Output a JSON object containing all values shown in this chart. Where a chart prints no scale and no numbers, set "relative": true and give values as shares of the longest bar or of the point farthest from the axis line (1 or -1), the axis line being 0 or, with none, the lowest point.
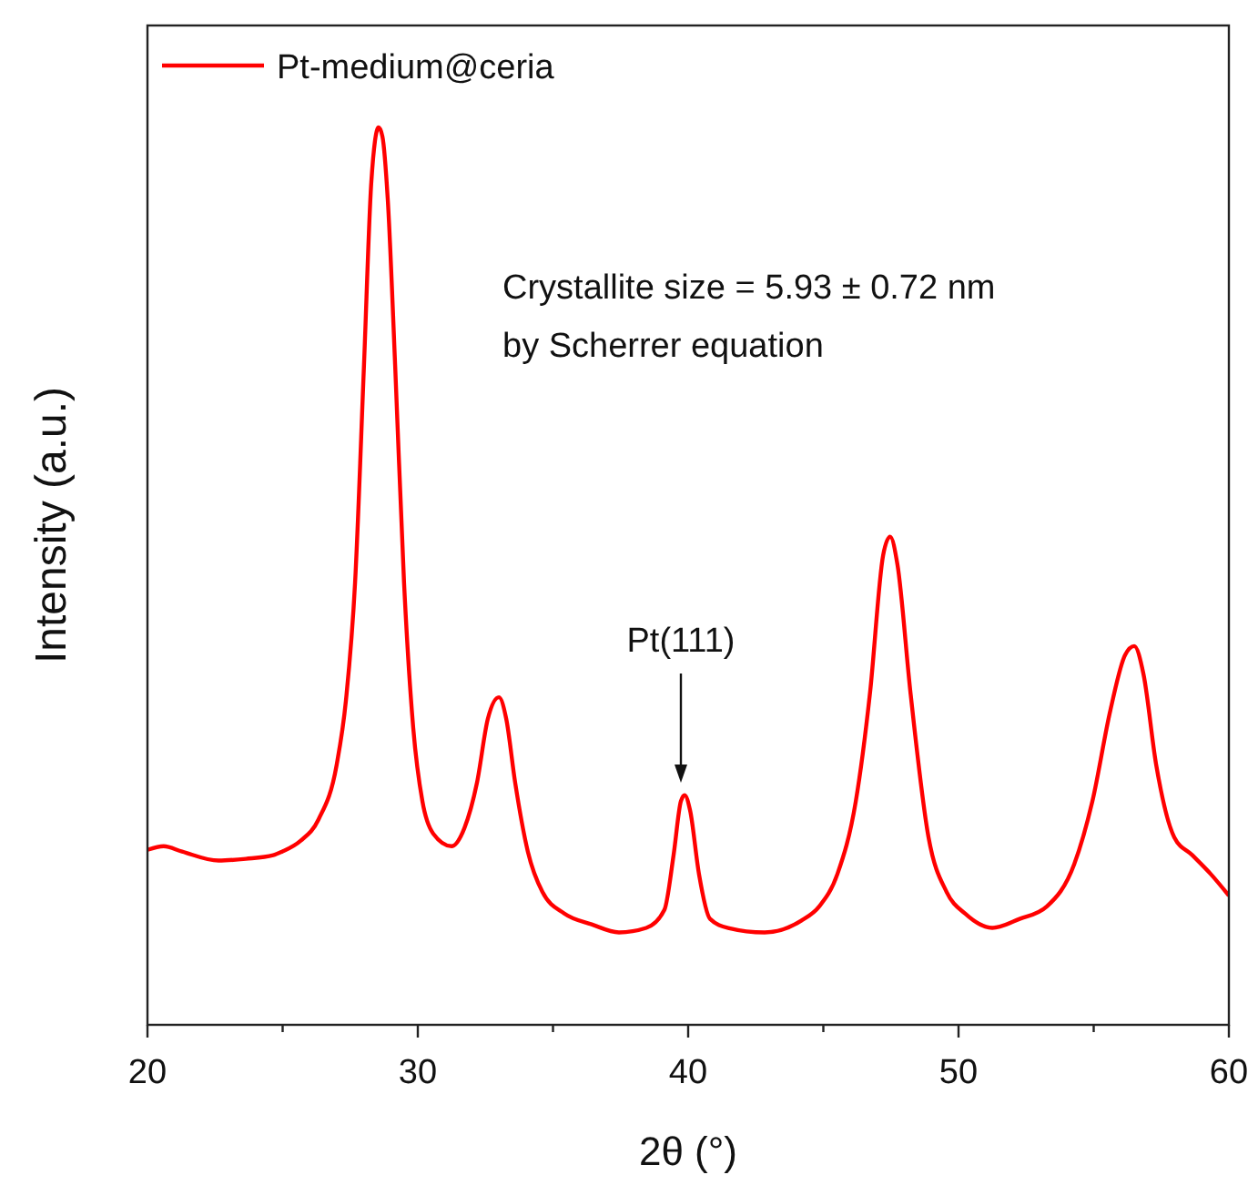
{
  "chart_data": {
    "type": "line",
    "relative": true,
    "xlabel": "2θ (°)",
    "ylabel": "Intensity (a.u.)",
    "xlim": [
      20,
      60
    ],
    "xticks": [
      20,
      {
        "value": 25,
        "label": null
      },
      30,
      {
        "value": 35,
        "label": null
      },
      40,
      {
        "value": 45,
        "label": null
      },
      50,
      {
        "value": 55,
        "label": null
      },
      60
    ],
    "legend": "top left",
    "grid": false,
    "marker": "none",
    "line_style": "solid",
    "tick_labels": "x",
    "annotations": [
      "Crystallite size = 5.93 ± 0.72 nm",
      "by Scherrer equation",
      "Pt(111)"
    ],
    "series": [
      {
        "name": "Pt-medium@ceria",
        "color": "#ff0000",
        "x": [
          20.0,
          20.6,
          21.28,
          22.63,
          23.64,
          24.65,
          24.98,
          25.66,
          26.33,
          27.0,
          27.34,
          27.68,
          28.01,
          28.28,
          28.55,
          28.69,
          28.89,
          29.16,
          29.49,
          29.83,
          30.17,
          30.57,
          31.25,
          31.72,
          32.19,
          32.59,
          33.0,
          33.27,
          33.6,
          34.07,
          34.61,
          35.42,
          36.43,
          37.44,
          38.45,
          39.12,
          39.46,
          39.73,
          39.87,
          40.07,
          40.4,
          40.81,
          41.48,
          42.83,
          44.18,
          44.85,
          45.52,
          46.2,
          46.73,
          47.21,
          47.47,
          47.74,
          48.22,
          48.89,
          49.56,
          50.24,
          51.25,
          52.26,
          53.27,
          54.28,
          54.95,
          55.62,
          56.16,
          56.5,
          56.84,
          57.31,
          57.98,
          58.65,
          59.33,
          60.0
        ],
        "values": [
          0.195,
          0.199,
          0.193,
          0.183,
          0.185,
          0.189,
          0.193,
          0.205,
          0.229,
          0.29,
          0.361,
          0.493,
          0.736,
          0.939,
          1,
          0.99,
          0.919,
          0.736,
          0.493,
          0.331,
          0.249,
          0.213,
          0.199,
          0.219,
          0.27,
          0.341,
          0.365,
          0.341,
          0.27,
          0.193,
          0.148,
          0.124,
          0.112,
          0.103,
          0.108,
          0.128,
          0.189,
          0.249,
          0.256,
          0.239,
          0.168,
          0.118,
          0.108,
          0.103,
          0.116,
          0.132,
          0.168,
          0.249,
          0.371,
          0.523,
          0.544,
          0.513,
          0.371,
          0.209,
          0.148,
          0.124,
          0.108,
          0.118,
          0.132,
          0.179,
          0.249,
          0.351,
          0.412,
          0.422,
          0.391,
          0.29,
          0.209,
          0.189,
          0.168,
          0.144
        ]
      }
    ]
  }
}
